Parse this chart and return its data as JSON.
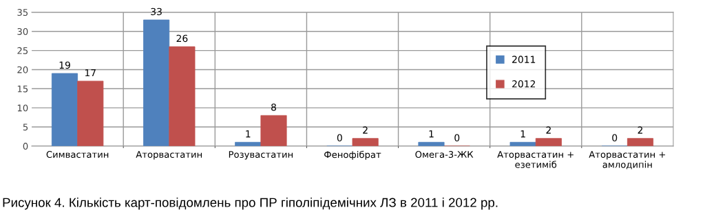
{
  "chart_data": {
    "type": "bar",
    "title": "Рисунок 4. Кількість карт-повідомлень про ПР гіполіпідемічних ЛЗ в 2011 і 2012 рр.",
    "categories": [
      "Симвастатин",
      "Аторвастатин",
      "Розувастатин",
      "Фенофібрат",
      "Омега-3-ЖК",
      "Аторвастатин + езетиміб",
      "Аторвастатин + амлодипін"
    ],
    "series": [
      {
        "name": "2011",
        "color": "#4f81bd",
        "values": [
          19,
          33,
          1,
          0,
          1,
          1,
          0
        ]
      },
      {
        "name": "2012",
        "color": "#c0504d",
        "values": [
          17,
          26,
          8,
          2,
          0,
          2,
          2
        ]
      }
    ],
    "ylim": [
      0,
      35
    ],
    "yticks": [
      0,
      5,
      10,
      15,
      20,
      25,
      30,
      35
    ],
    "grid": true,
    "legend": "center right",
    "data_labels": true
  }
}
